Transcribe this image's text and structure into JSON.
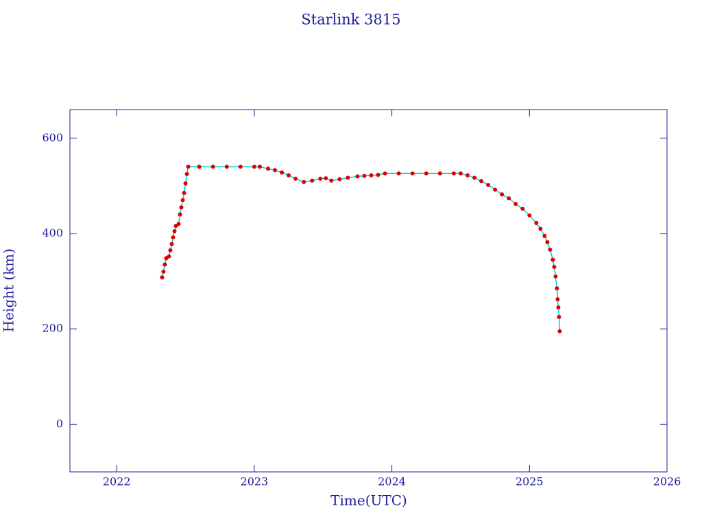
{
  "chart_data": {
    "type": "scatter-line",
    "title": "Starlink 3815",
    "x_label": "Time(UTC)",
    "y_label": "Height (km)",
    "xlim": [
      2021.66,
      2026.0
    ],
    "xticks": [
      2022,
      2023,
      2024,
      2025,
      2026
    ],
    "ylim": [
      -100,
      660
    ],
    "yticks": [
      0,
      200,
      400,
      600
    ],
    "marker_color": "#e00000",
    "line_color": "#00d0d0",
    "x": [
      2022.33,
      2022.34,
      2022.35,
      2022.36,
      2022.38,
      2022.39,
      2022.4,
      2022.41,
      2022.42,
      2022.43,
      2022.45,
      2022.46,
      2022.47,
      2022.48,
      2022.49,
      2022.5,
      2022.51,
      2022.52,
      2022.6,
      2022.7,
      2022.8,
      2022.9,
      2023.0,
      2023.04,
      2023.1,
      2023.15,
      2023.2,
      2023.25,
      2023.3,
      2023.36,
      2023.42,
      2023.48,
      2023.52,
      2023.56,
      2023.62,
      2023.68,
      2023.75,
      2023.8,
      2023.85,
      2023.9,
      2023.95,
      2024.05,
      2024.15,
      2024.25,
      2024.35,
      2024.45,
      2024.5,
      2024.55,
      2024.6,
      2024.65,
      2024.7,
      2024.75,
      2024.8,
      2024.85,
      2024.9,
      2024.95,
      2025.0,
      2025.05,
      2025.08,
      2025.11,
      2025.13,
      2025.15,
      2025.17,
      2025.18,
      2025.19,
      2025.2,
      2025.205,
      2025.21,
      2025.215,
      2025.22
    ],
    "values": [
      308,
      320,
      335,
      348,
      352,
      365,
      378,
      392,
      405,
      416,
      420,
      440,
      455,
      470,
      485,
      505,
      525,
      540,
      540,
      540,
      540,
      540,
      540,
      540,
      536,
      533,
      528,
      522,
      515,
      508,
      511,
      515,
      516,
      511,
      514,
      517,
      520,
      521,
      522,
      523,
      526,
      526,
      526,
      526,
      526,
      526,
      526,
      522,
      517,
      510,
      502,
      492,
      482,
      474,
      462,
      452,
      438,
      422,
      410,
      395,
      382,
      366,
      345,
      330,
      310,
      285,
      262,
      245,
      225,
      195
    ]
  }
}
